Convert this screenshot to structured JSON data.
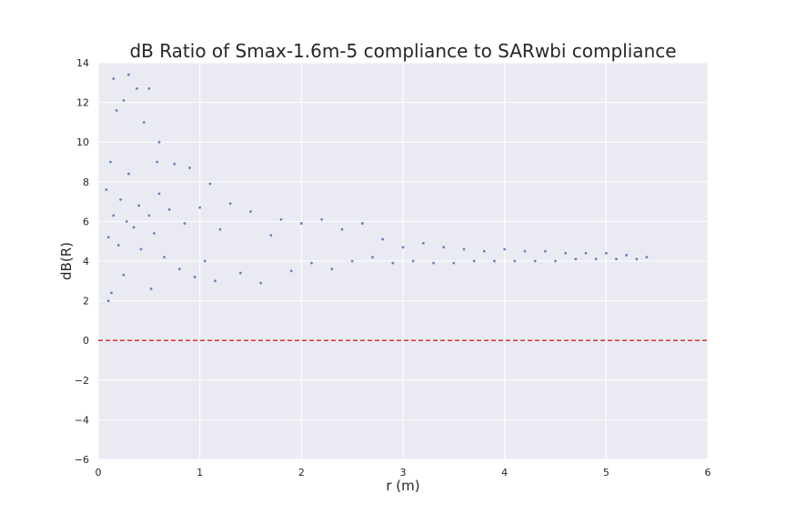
{
  "chart_data": {
    "type": "scatter",
    "title": "dB Ratio of Smax-1.6m-5 compliance to SARwbi compliance",
    "xlabel": "r (m)",
    "ylabel": "dB(R)",
    "xlim": [
      0,
      6
    ],
    "ylim": [
      -6,
      14
    ],
    "xticks": [
      "0",
      "1",
      "2",
      "3",
      "4",
      "5",
      "6"
    ],
    "yticks": [
      "−6",
      "−4",
      "−2",
      "0",
      "2",
      "4",
      "6",
      "8",
      "10",
      "12",
      "14"
    ],
    "grid": true,
    "legend": "none",
    "series": [
      {
        "marker_color": "#4c72b0",
        "points": [
          [
            0.08,
            7.6
          ],
          [
            0.1,
            5.2
          ],
          [
            0.1,
            2.0
          ],
          [
            0.12,
            9.0
          ],
          [
            0.13,
            2.4
          ],
          [
            0.15,
            6.3
          ],
          [
            0.15,
            13.2
          ],
          [
            0.18,
            11.6
          ],
          [
            0.2,
            4.8
          ],
          [
            0.22,
            7.1
          ],
          [
            0.25,
            12.1
          ],
          [
            0.25,
            3.3
          ],
          [
            0.28,
            6.0
          ],
          [
            0.3,
            8.4
          ],
          [
            0.3,
            13.4
          ],
          [
            0.35,
            5.7
          ],
          [
            0.38,
            12.7
          ],
          [
            0.4,
            6.8
          ],
          [
            0.42,
            4.6
          ],
          [
            0.45,
            11.0
          ],
          [
            0.5,
            6.3
          ],
          [
            0.5,
            12.7
          ],
          [
            0.52,
            2.6
          ],
          [
            0.55,
            5.4
          ],
          [
            0.58,
            9.0
          ],
          [
            0.6,
            7.4
          ],
          [
            0.6,
            10.0
          ],
          [
            0.65,
            4.2
          ],
          [
            0.7,
            6.6
          ],
          [
            0.75,
            8.9
          ],
          [
            0.8,
            3.6
          ],
          [
            0.85,
            5.9
          ],
          [
            0.9,
            8.7
          ],
          [
            0.95,
            3.2
          ],
          [
            1.0,
            6.7
          ],
          [
            1.05,
            4.0
          ],
          [
            1.1,
            7.9
          ],
          [
            1.15,
            3.0
          ],
          [
            1.2,
            5.6
          ],
          [
            1.3,
            6.9
          ],
          [
            1.4,
            3.4
          ],
          [
            1.5,
            6.5
          ],
          [
            1.6,
            2.9
          ],
          [
            1.7,
            5.3
          ],
          [
            1.8,
            6.1
          ],
          [
            1.9,
            3.5
          ],
          [
            2.0,
            5.9
          ],
          [
            2.1,
            3.9
          ],
          [
            2.2,
            6.1
          ],
          [
            2.3,
            3.6
          ],
          [
            2.4,
            5.6
          ],
          [
            2.5,
            4.0
          ],
          [
            2.6,
            5.9
          ],
          [
            2.7,
            4.2
          ],
          [
            2.8,
            5.1
          ],
          [
            2.9,
            3.9
          ],
          [
            3.0,
            4.7
          ],
          [
            3.1,
            4.0
          ],
          [
            3.2,
            4.9
          ],
          [
            3.3,
            3.9
          ],
          [
            3.4,
            4.7
          ],
          [
            3.5,
            3.9
          ],
          [
            3.6,
            4.6
          ],
          [
            3.7,
            4.0
          ],
          [
            3.8,
            4.5
          ],
          [
            3.9,
            4.0
          ],
          [
            4.0,
            4.6
          ],
          [
            4.1,
            4.0
          ],
          [
            4.2,
            4.5
          ],
          [
            4.3,
            4.0
          ],
          [
            4.4,
            4.5
          ],
          [
            4.5,
            4.0
          ],
          [
            4.6,
            4.4
          ],
          [
            4.7,
            4.1
          ],
          [
            4.8,
            4.4
          ],
          [
            4.9,
            4.1
          ],
          [
            5.0,
            4.4
          ],
          [
            5.1,
            4.1
          ],
          [
            5.2,
            4.3
          ],
          [
            5.3,
            4.1
          ],
          [
            5.4,
            4.2
          ]
        ]
      }
    ],
    "reference_line": {
      "y": 0,
      "color": "#e0302a",
      "style": "dashed"
    }
  }
}
